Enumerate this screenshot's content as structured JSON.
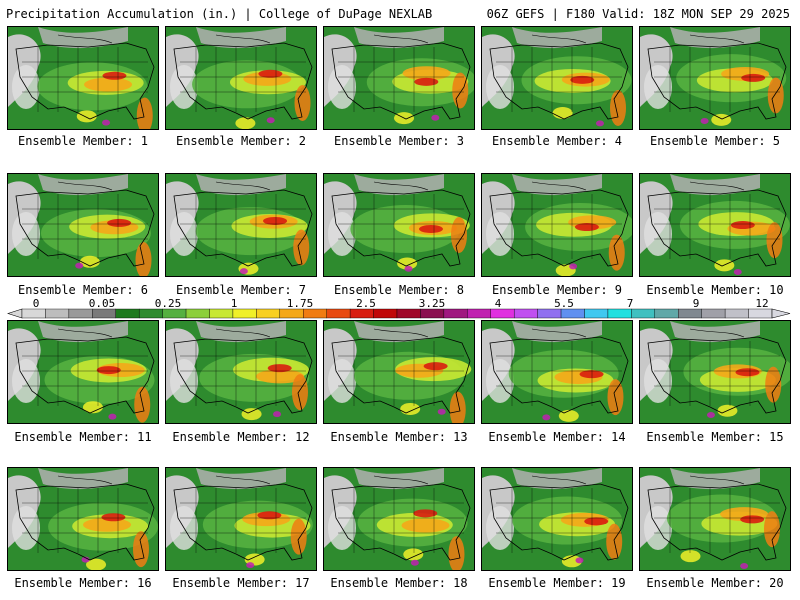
{
  "header": {
    "title_left": "Precipitation Accumulation (in.) | College of DuPage NEXLAB",
    "title_right": "06Z GEFS | F180 Valid: 18Z MON SEP 29 2025"
  },
  "panels": [
    {
      "label": "Ensemble Member: 1"
    },
    {
      "label": "Ensemble Member: 2"
    },
    {
      "label": "Ensemble Member: 3"
    },
    {
      "label": "Ensemble Member: 4"
    },
    {
      "label": "Ensemble Member: 5"
    },
    {
      "label": "Ensemble Member: 6"
    },
    {
      "label": "Ensemble Member: 7"
    },
    {
      "label": "Ensemble Member: 8"
    },
    {
      "label": "Ensemble Member: 9"
    },
    {
      "label": "Ensemble Member: 10"
    },
    {
      "label": "Ensemble Member: 11"
    },
    {
      "label": "Ensemble Member: 12"
    },
    {
      "label": "Ensemble Member: 13"
    },
    {
      "label": "Ensemble Member: 14"
    },
    {
      "label": "Ensemble Member: 15"
    },
    {
      "label": "Ensemble Member: 16"
    },
    {
      "label": "Ensemble Member: 17"
    },
    {
      "label": "Ensemble Member: 18"
    },
    {
      "label": "Ensemble Member: 19"
    },
    {
      "label": "Ensemble Member: 20"
    }
  ],
  "colorbar": {
    "tick_labels": [
      "0",
      "0.05",
      "0.25",
      "1",
      "1.75",
      "2.5",
      "3.25",
      "4",
      "5.5",
      "7",
      "9",
      "12"
    ],
    "colors": [
      "#d8d8d8",
      "#bdbdbd",
      "#9a9a9a",
      "#7a7a7a",
      "#1e7a1e",
      "#2e8b2e",
      "#55b040",
      "#8ccf3a",
      "#c8e832",
      "#f0f028",
      "#f8d020",
      "#f4a818",
      "#f07c12",
      "#e84a10",
      "#d81e10",
      "#c00808",
      "#a00828",
      "#8a1050",
      "#a01880",
      "#c020b0",
      "#e030e0",
      "#c050f0",
      "#9070f0",
      "#6090f0",
      "#40c8f0",
      "#20e0e0",
      "#40c0c0",
      "#60a8a8",
      "#808890",
      "#a0a0a8",
      "#c0c0c8",
      "#d8d8e0"
    ]
  }
}
